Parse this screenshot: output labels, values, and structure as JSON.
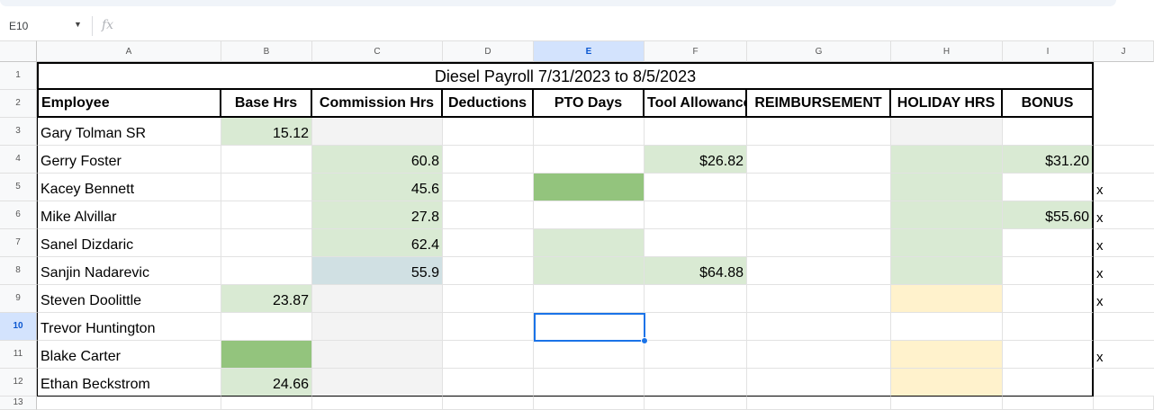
{
  "formula_bar": {
    "cell_ref": "E10",
    "fx_label": "fx"
  },
  "columns": [
    "A",
    "B",
    "C",
    "D",
    "E",
    "F",
    "G",
    "H",
    "I",
    "J"
  ],
  "selected_column": "E",
  "rows": [
    "1",
    "2",
    "3",
    "4",
    "5",
    "6",
    "7",
    "8",
    "9",
    "10",
    "11",
    "12",
    "13"
  ],
  "selected_row": "10",
  "sheet": {
    "title": "Diesel Payroll 7/31/2023 to 8/5/2023",
    "headers": [
      "Employee",
      "Base Hrs",
      "Commission Hrs",
      "Deductions",
      "PTO Days",
      "Tool Allowance",
      "REIMBURSEMENT",
      "HOLIDAY HRS",
      "BONUS"
    ],
    "employees": [
      {
        "name": "Gary Tolman SR",
        "base": "15.12",
        "commission": "",
        "tool": "",
        "bonus": "",
        "mark": ""
      },
      {
        "name": "Gerry Foster",
        "base": "",
        "commission": "60.8",
        "tool": "$26.82",
        "bonus": "$31.20",
        "mark": ""
      },
      {
        "name": "Kacey Bennett",
        "base": "",
        "commission": "45.6",
        "tool": "",
        "bonus": "",
        "mark": "x"
      },
      {
        "name": "Mike Alvillar",
        "base": "",
        "commission": "27.8",
        "tool": "",
        "bonus": "$55.60",
        "mark": "x"
      },
      {
        "name": "Sanel Dizdaric",
        "base": "",
        "commission": "62.4",
        "tool": "",
        "bonus": "",
        "mark": "x"
      },
      {
        "name": "Sanjin Nadarevic",
        "base": "",
        "commission": "55.9",
        "tool": "$64.88",
        "bonus": "",
        "mark": "x"
      },
      {
        "name": "Steven Doolittle",
        "base": "23.87",
        "commission": "",
        "tool": "",
        "bonus": "",
        "mark": "x"
      },
      {
        "name": "Trevor Huntington",
        "base": "",
        "commission": "",
        "tool": "",
        "bonus": "",
        "mark": ""
      },
      {
        "name": "Blake Carter",
        "base": "",
        "commission": "",
        "tool": "",
        "bonus": "",
        "mark": "x"
      },
      {
        "name": "Ethan Beckstrom",
        "base": "24.66",
        "commission": "",
        "tool": "",
        "bonus": "",
        "mark": ""
      }
    ]
  },
  "colors": {
    "light_green": "#d9ead3",
    "green": "#93c47d",
    "light_gray": "#f3f3f3",
    "blue_gray": "#d0e0e3",
    "light_yellow": "#fff2cc",
    "selection_blue": "#1a73e8"
  }
}
